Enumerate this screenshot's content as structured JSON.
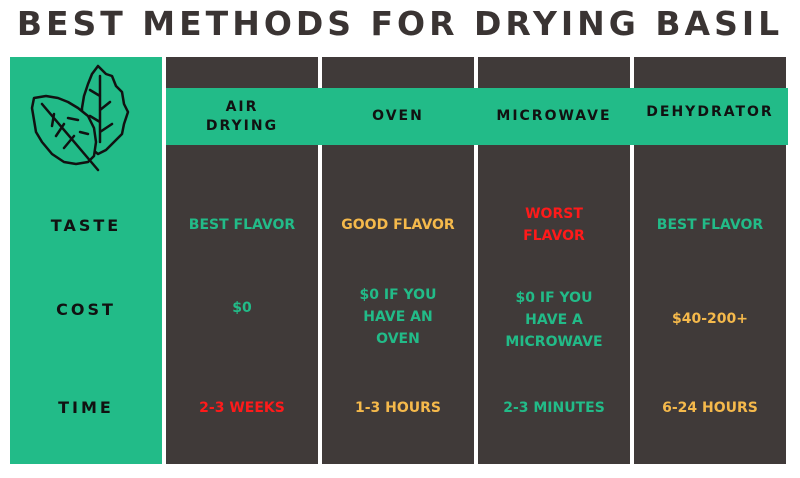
{
  "title": "BEST METHODS FOR DRYING BASIL",
  "icon": "basil-leaves-icon",
  "colors": {
    "green": "#22bb88",
    "dark": "#403a39",
    "orange": "#f5b94b",
    "red": "#ff1a1a"
  },
  "columns": [
    "AIR DRYING",
    "OVEN",
    "MICROWAVE",
    "DEHYDRATOR"
  ],
  "rows": [
    {
      "label": "TASTE",
      "cells": [
        {
          "text": "BEST FLAVOR",
          "color": "#22bb88"
        },
        {
          "text": "GOOD FLAVOR",
          "color": "#f5b94b"
        },
        {
          "text": "WORST FLAVOR",
          "color": "#ff1a1a"
        },
        {
          "text": "BEST FLAVOR",
          "color": "#22bb88"
        }
      ]
    },
    {
      "label": "COST",
      "cells": [
        {
          "text": "$0",
          "color": "#22bb88"
        },
        {
          "text": "$0 IF YOU HAVE AN OVEN",
          "color": "#22bb88"
        },
        {
          "text": "$0 IF YOU HAVE A MICROWAVE",
          "color": "#22bb88"
        },
        {
          "text": "$40-200+",
          "color": "#f5b94b"
        }
      ]
    },
    {
      "label": "TIME",
      "cells": [
        {
          "text": "2-3 WEEKS",
          "color": "#ff1a1a"
        },
        {
          "text": "1-3 HOURS",
          "color": "#f5b94b"
        },
        {
          "text": "2-3 MINUTES",
          "color": "#22bb88"
        },
        {
          "text": "6-24 HOURS",
          "color": "#f5b94b"
        }
      ]
    }
  ]
}
